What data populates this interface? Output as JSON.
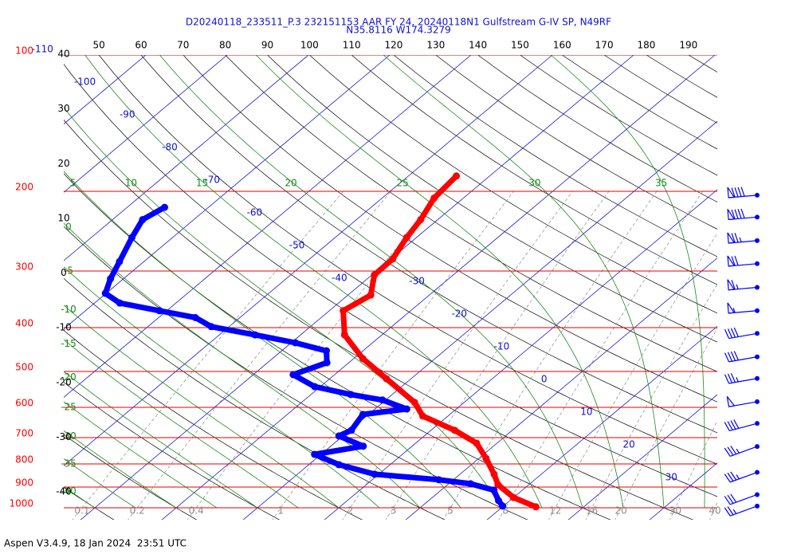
{
  "chart_data": {
    "type": "skew-t",
    "title": "D20240118_233511_P.3 232151153 AAR FY 24, 20240118N1 Gulfstream G-IV SP, N49RF",
    "subtitle": "N35.8116 W174.3279",
    "footer": "Aspen V3.4.9, 18 Jan 2024  23:51 UTC",
    "log_y": true,
    "ylim": [
      100,
      1000
    ],
    "yticks": [
      100,
      200,
      300,
      400,
      500,
      600,
      700,
      800,
      900,
      1000
    ],
    "isotherm_ticks": [
      -110,
      -100,
      -90,
      -80,
      -70,
      -60,
      -50,
      -40,
      -30,
      -20,
      -10,
      0,
      10,
      20,
      30
    ],
    "dry_adiabat_ticks": [
      50,
      60,
      70,
      80,
      90,
      100,
      110,
      120,
      130,
      140,
      150,
      160,
      170,
      180,
      190
    ],
    "moist_adiabat_ticks": [
      -40,
      -35,
      -30,
      -25,
      -20,
      -15,
      -10,
      -5,
      0,
      5,
      10,
      15,
      20,
      25,
      30,
      35
    ],
    "mixing_ratio_ticks": [
      0.1,
      0.2,
      0.4,
      1,
      2,
      3,
      5,
      8,
      12,
      16,
      20,
      30,
      40
    ],
    "left_scale_ticks": [
      40,
      30,
      20,
      10,
      0,
      -10,
      -20,
      -30,
      -40
    ],
    "series": [
      {
        "color": "#ff0000",
        "pressure": [
          185,
          207,
          231,
          253,
          282,
          306,
          339,
          367,
          415,
          468,
          519,
          585,
          627,
          674,
          720,
          778,
          843,
          889,
          949,
          995
        ],
        "values": [
          -44.1,
          -43.6,
          -42.1,
          -41.2,
          -39.8,
          -39.7,
          -37.2,
          -38.3,
          -34.6,
          -28.9,
          -23.0,
          -16.1,
          -13.1,
          -7.1,
          -2.5,
          0.9,
          4.2,
          6.2,
          10.0,
          14.1
        ]
      },
      {
        "color": "#0000ff",
        "pressure": [
          217,
          231,
          253,
          286,
          312,
          336,
          353,
          367,
          380,
          398,
          415,
          432,
          450,
          478,
          508,
          540,
          562,
          578,
          605,
          622,
          674,
          694,
          731,
          762,
          803,
          843,
          867,
          885,
          914,
          964,
          991
        ],
        "values": [
          -75.4,
          -76.3,
          -75.0,
          -73.0,
          -71.6,
          -70.1,
          -66.9,
          -60.9,
          -55.5,
          -52.2,
          -45.6,
          -39.5,
          -34.5,
          -32.7,
          -35.1,
          -30.7,
          -25.1,
          -20.4,
          -16.1,
          -20.7,
          -19.8,
          -20.5,
          -16.0,
          -20.8,
          -16.3,
          -10.5,
          -1.8,
          2.7,
          6.5,
          8.6,
          9.9
        ]
      }
    ],
    "wind": {
      "color": "#0000ff",
      "pressure": [
        204,
        228,
        257,
        289,
        326,
        367,
        412,
        464,
        518,
        583,
        651,
        732,
        835,
        935,
        991
      ],
      "speed": [
        90,
        90,
        75,
        70,
        65,
        55,
        40,
        40,
        35,
        50,
        40,
        35,
        35,
        30,
        25
      ],
      "direction": [
        265,
        265,
        265,
        265,
        265,
        265,
        260,
        260,
        260,
        260,
        255,
        250,
        250,
        250,
        250
      ]
    }
  }
}
